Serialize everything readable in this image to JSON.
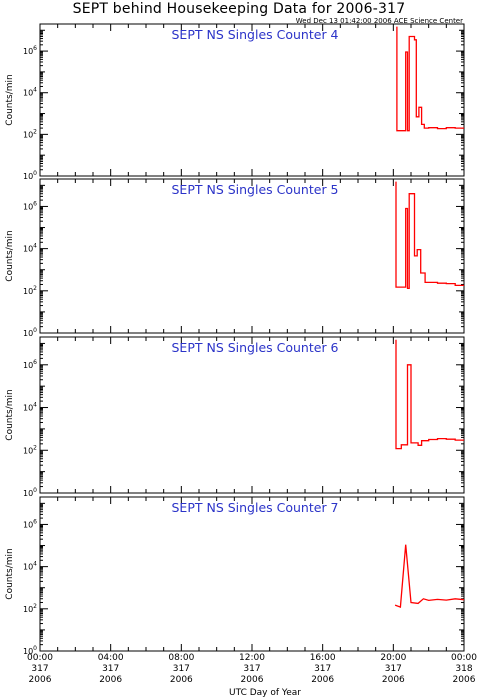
{
  "title": "SEPT behind Housekeeping Data for 2006-317",
  "subtitle": "Wed Dec 13 01:42:00 2006 ACE Science Center",
  "colors": {
    "trace": "#ff0000",
    "panel_title": "#2b33c8",
    "axes": "#000000"
  },
  "chart_data": [
    {
      "type": "line",
      "title": "SEPT NS Singles Counter 4",
      "ylabel": "Counts/min",
      "xlabel": "UTC Day of Year",
      "yscale": "log",
      "ylim": [
        1,
        20000000
      ],
      "xlim": [
        0,
        24
      ],
      "series": [
        {
          "x": [
            20.2,
            20.2,
            20.7,
            20.7,
            20.8,
            20.8,
            20.9,
            20.9,
            21.2,
            21.2,
            21.3,
            21.3,
            21.45,
            21.45,
            21.6,
            21.6,
            21.75,
            21.75,
            22.0,
            22.0,
            22.5,
            22.5,
            23.0,
            23.0,
            23.5,
            23.5,
            24.0
          ],
          "y": [
            15000000,
            150,
            150,
            900000,
            900000,
            150,
            150,
            5000000,
            5000000,
            3500000,
            3500000,
            700,
            700,
            2000,
            2000,
            300,
            300,
            200,
            200,
            210,
            210,
            190,
            190,
            210,
            210,
            200,
            200
          ]
        }
      ]
    },
    {
      "type": "line",
      "title": "SEPT NS Singles Counter 5",
      "ylabel": "Counts/min",
      "xlabel": "UTC Day of Year",
      "yscale": "log",
      "ylim": [
        1,
        20000000
      ],
      "xlim": [
        0,
        24
      ],
      "series": [
        {
          "x": [
            20.15,
            20.15,
            20.7,
            20.7,
            20.8,
            20.8,
            20.9,
            20.9,
            21.2,
            21.2,
            21.35,
            21.35,
            21.55,
            21.55,
            21.8,
            21.8,
            22.5,
            22.5,
            23.0,
            23.0,
            23.5,
            23.5,
            24.0
          ],
          "y": [
            15000000,
            150,
            150,
            800000,
            800000,
            130,
            130,
            4000000,
            4000000,
            4500,
            4500,
            9000,
            9000,
            700,
            700,
            250,
            250,
            230,
            230,
            220,
            220,
            180,
            180
          ]
        }
      ]
    },
    {
      "type": "line",
      "title": "SEPT NS Singles Counter 6",
      "ylabel": "Counts/min",
      "xlabel": "UTC Day of Year",
      "yscale": "log",
      "ylim": [
        1,
        20000000
      ],
      "xlim": [
        0,
        24
      ],
      "series": [
        {
          "x": [
            20.15,
            20.15,
            20.45,
            20.45,
            20.8,
            20.8,
            21.0,
            21.0,
            21.4,
            21.4,
            21.6,
            21.6,
            22.0,
            22.0,
            22.5,
            22.5,
            23.0,
            23.0,
            23.5,
            23.5,
            24.0
          ],
          "y": [
            15000000,
            120,
            120,
            180,
            180,
            1000000,
            1000000,
            220,
            220,
            170,
            170,
            280,
            280,
            320,
            320,
            350,
            350,
            330,
            330,
            300,
            300
          ]
        }
      ]
    },
    {
      "type": "line",
      "title": "SEPT NS Singles Counter 7",
      "ylabel": "Counts/min",
      "xlabel": "UTC Day of Year",
      "yscale": "log",
      "ylim": [
        1,
        20000000
      ],
      "xlim": [
        0,
        24
      ],
      "series": [
        {
          "x": [
            20.1,
            20.1,
            20.4,
            20.4,
            20.7,
            20.7,
            21.0,
            21.0,
            21.4,
            21.4,
            21.7,
            21.7,
            22.0,
            22.0,
            22.5,
            22.5,
            23.0,
            23.0,
            23.5,
            23.5,
            24.0
          ],
          "y": [
            150,
            150,
            120,
            120,
            110000,
            110000,
            200,
            200,
            180,
            180,
            300,
            300,
            250,
            250,
            280,
            280,
            260,
            260,
            300,
            300,
            270
          ]
        }
      ]
    }
  ],
  "y_ticks": [
    {
      "base": "10",
      "exp": "0",
      "value": 1
    },
    {
      "base": "10",
      "exp": "2",
      "value": 100
    },
    {
      "base": "10",
      "exp": "4",
      "value": 10000
    },
    {
      "base": "10",
      "exp": "6",
      "value": 1000000
    }
  ],
  "x_ticks": [
    {
      "value": 0,
      "time": "00:00",
      "doy": "317",
      "year": "2006"
    },
    {
      "value": 4,
      "time": "04:00",
      "doy": "317",
      "year": "2006"
    },
    {
      "value": 8,
      "time": "08:00",
      "doy": "317",
      "year": "2006"
    },
    {
      "value": 12,
      "time": "12:00",
      "doy": "317",
      "year": "2006"
    },
    {
      "value": 16,
      "time": "16:00",
      "doy": "317",
      "year": "2006"
    },
    {
      "value": 20,
      "time": "20:00",
      "doy": "317",
      "year": "2006"
    },
    {
      "value": 24,
      "time": "00:00",
      "doy": "318",
      "year": "2006"
    }
  ],
  "xlabel": "UTC Day of Year"
}
